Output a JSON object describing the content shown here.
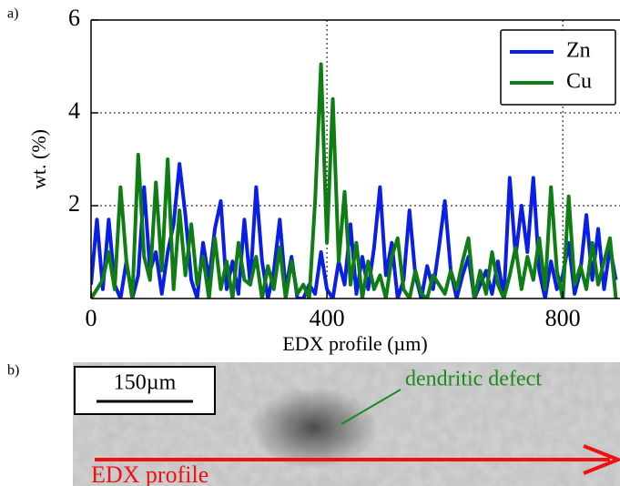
{
  "panel_labels": [
    "a)",
    "b)"
  ],
  "chart_data": {
    "type": "line",
    "xlabel": "EDX profile (µm)",
    "ylabel": "wt. (%)",
    "x": [
      0,
      10,
      20,
      30,
      40,
      50,
      60,
      70,
      80,
      90,
      100,
      110,
      120,
      130,
      140,
      150,
      160,
      170,
      180,
      190,
      200,
      210,
      220,
      230,
      240,
      250,
      260,
      270,
      280,
      290,
      300,
      310,
      320,
      330,
      340,
      350,
      360,
      370,
      380,
      390,
      400,
      410,
      420,
      430,
      440,
      450,
      460,
      470,
      480,
      490,
      500,
      510,
      520,
      530,
      540,
      550,
      560,
      570,
      580,
      590,
      600,
      610,
      620,
      630,
      640,
      650,
      660,
      670,
      680,
      690,
      700,
      710,
      720,
      730,
      740,
      750,
      760,
      770,
      780,
      790,
      800,
      810,
      820,
      830,
      840,
      850,
      860,
      870,
      880,
      890
    ],
    "series": [
      {
        "name": "Zn",
        "color": "#0a1ee6",
        "values": [
          0.3,
          1.7,
          0.2,
          1.7,
          0.3,
          0,
          0.8,
          0,
          0.5,
          2.4,
          0.6,
          1.0,
          0.1,
          1.0,
          1.6,
          2.9,
          1.8,
          0.4,
          0,
          1.2,
          0.4,
          1.5,
          2.1,
          0.2,
          0.8,
          0.1,
          1.7,
          0.3,
          2.4,
          0.8,
          0,
          0.6,
          1.7,
          0.2,
          0.9,
          0,
          0,
          0.3,
          0.1,
          1.0,
          0.2,
          0,
          0.8,
          0.3,
          1.6,
          0.1,
          0.9,
          0.2,
          1.1,
          2.4,
          0.5,
          1.2,
          0,
          0.4,
          1.9,
          0.5,
          0,
          0.7,
          0.2,
          1.1,
          2.1,
          0.6,
          0,
          0.5,
          0.9,
          0,
          0.3,
          0.6,
          0.1,
          0.8,
          0,
          2.6,
          0.9,
          2.0,
          1.0,
          2.6,
          0.6,
          0,
          0.8,
          0.2,
          0.5,
          1.2,
          0.1,
          0.6,
          1.8,
          0.4,
          1.5,
          0.2,
          1.1,
          0.4
        ]
      },
      {
        "name": "Cu",
        "color": "#0f7d14",
        "values": [
          0,
          0.2,
          0.4,
          1.0,
          0.2,
          2.4,
          0.8,
          0,
          3.1,
          0.9,
          0.4,
          2.5,
          0.6,
          3.0,
          0.2,
          1.9,
          0.5,
          1.6,
          0.3,
          0.9,
          0,
          1.3,
          0.2,
          0.8,
          0,
          1.2,
          0.4,
          0.3,
          0.9,
          0,
          0.7,
          0.2,
          1.1,
          0,
          0.8,
          0.1,
          0.3,
          0,
          2.1,
          5.05,
          1.2,
          4.3,
          0.8,
          2.3,
          0.3,
          1.2,
          0,
          0.8,
          0.2,
          0.5,
          0,
          0.9,
          1.3,
          0.2,
          0,
          0.6,
          0.1,
          0,
          0.5,
          0.3,
          0.1,
          0.6,
          0.2,
          0.8,
          1.3,
          0,
          0.6,
          0.1,
          1.0,
          0.3,
          0,
          0.5,
          1.1,
          0.2,
          0.9,
          0.4,
          1.3,
          0.2,
          2.4,
          0.6,
          0,
          2.2,
          0.3,
          0.7,
          0.2,
          1.2,
          0.3,
          0.8,
          1.3,
          0
        ]
      }
    ],
    "xlim": [
      0,
      897
    ],
    "ylim": [
      0,
      6
    ],
    "xticks": [
      0,
      400,
      800
    ],
    "yticks": [
      2,
      4,
      6
    ],
    "grid": true,
    "legend": "upper right"
  },
  "micrograph": {
    "scale_bar": "150µm",
    "annotation": "dendritic defect",
    "profile_label": "EDX profile"
  }
}
